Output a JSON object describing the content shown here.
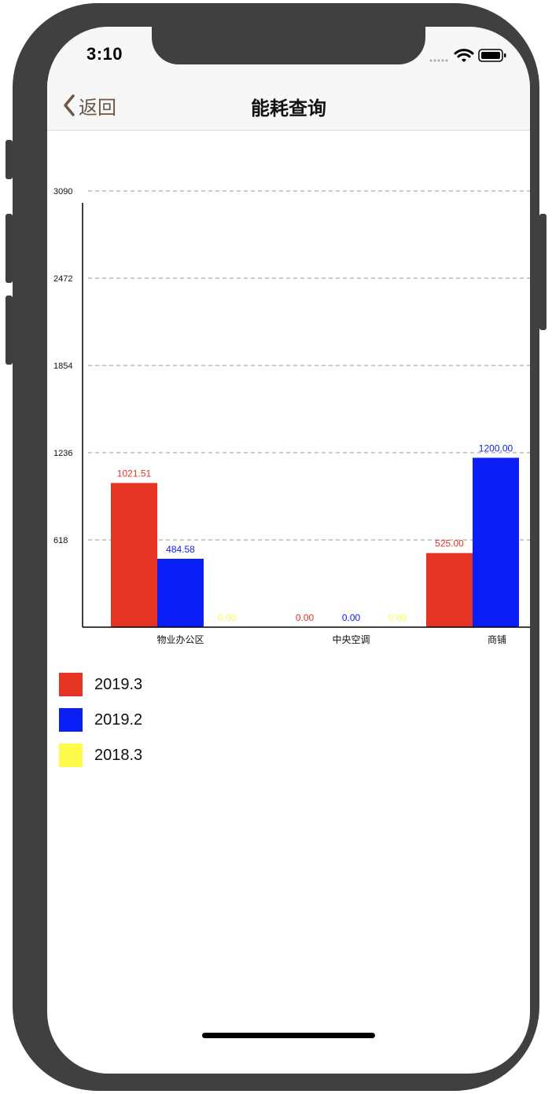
{
  "status_bar": {
    "time": "3:10"
  },
  "nav": {
    "back_label": "返回",
    "title": "能耗查询"
  },
  "colors": {
    "series_2019_3": "#e63424",
    "series_2019_2": "#0a1ef5",
    "series_2018_3": "#fffb4d",
    "back_tint": "#6b5647"
  },
  "chart_data": {
    "type": "bar",
    "categories": [
      "物业办公区",
      "中央空调",
      "商铺"
    ],
    "series": [
      {
        "name": "2019.3",
        "color": "#e63424",
        "values": [
          1021.51,
          0.0,
          525.0
        ],
        "labels": [
          "1021.51",
          "0.00",
          "525.00"
        ]
      },
      {
        "name": "2019.2",
        "color": "#0a1ef5",
        "values": [
          484.58,
          0.0,
          1200.0
        ],
        "labels": [
          "484.58",
          "0.00",
          "1200.00"
        ]
      },
      {
        "name": "2018.3",
        "color": "#fffb4d",
        "values": [
          0.0,
          0.0,
          null
        ],
        "labels": [
          "0.00",
          "0.00",
          ""
        ]
      }
    ],
    "y_ticks": [
      "3090",
      "2472",
      "1854",
      "1236",
      "618"
    ],
    "y_tick_values": [
      3090,
      2472,
      1854,
      1236,
      618
    ],
    "ylim": [
      0,
      3090
    ],
    "grid": "dashed horizontal",
    "legend_position": "bottom-left"
  },
  "legend": [
    {
      "label": "2019.3",
      "color": "#e63424"
    },
    {
      "label": "2019.2",
      "color": "#0a1ef5"
    },
    {
      "label": "2018.3",
      "color": "#fffb4d"
    }
  ]
}
